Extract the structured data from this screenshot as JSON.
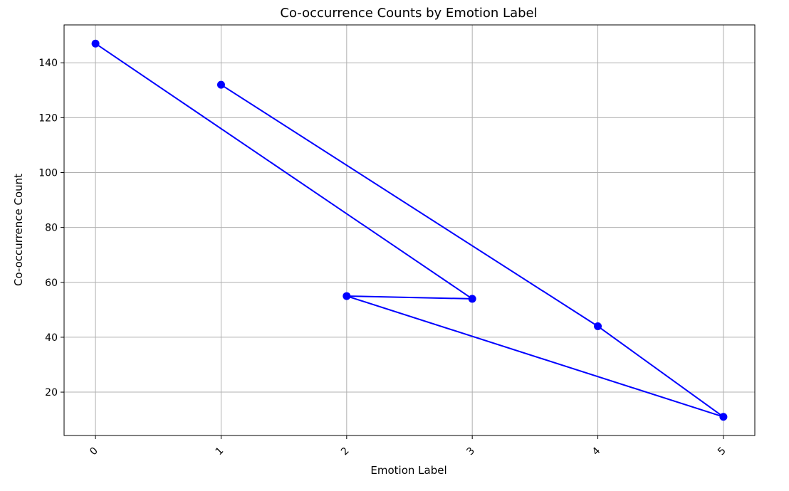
{
  "chart_data": {
    "type": "line",
    "title": "Co-occurrence Counts by Emotion Label",
    "xlabel": "Emotion Label",
    "ylabel": "Co-occurrence Count",
    "x_tick_labels": [
      "0",
      "1",
      "2",
      "3",
      "4",
      "5"
    ],
    "y_tick_labels": [
      "20",
      "40",
      "60",
      "80",
      "100",
      "120",
      "140"
    ],
    "x": [
      0,
      3,
      2,
      5,
      4,
      1
    ],
    "y": [
      147,
      54,
      55,
      11,
      44,
      132
    ],
    "xlim": [
      -0.25,
      5.25
    ],
    "ylim": [
      4.2,
      153.8
    ],
    "grid": true,
    "line_color": "#0000ff",
    "marker": "circle",
    "x_tick_rotation_deg": -45
  }
}
